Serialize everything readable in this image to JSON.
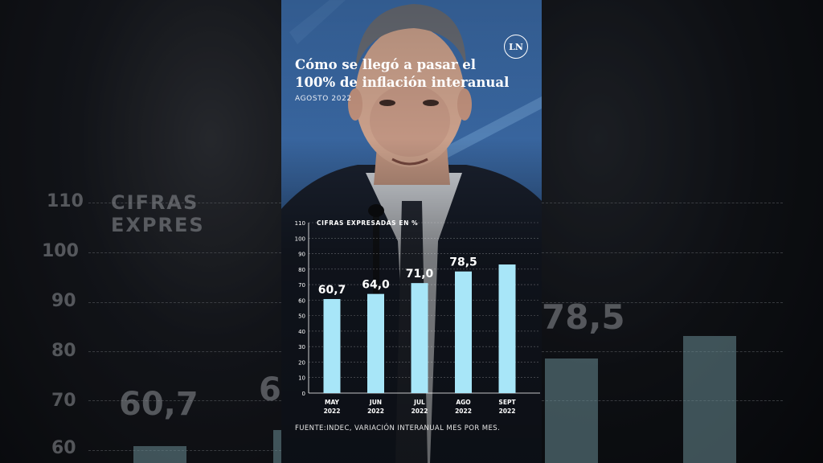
{
  "header": {
    "title_line1": "Cómo se llegó a pasar el",
    "title_line2": "100% de inflación interanual",
    "subtitle": "AGOSTO 2022",
    "logo": "LN"
  },
  "footer": {
    "source": "FUENTE:INDEC, VARIACIÓN INTERANUAL MES POR MES."
  },
  "background": {
    "ghost_heading": "CIFRAS EXPRES",
    "ghost_ticks": [
      "110",
      "100",
      "90",
      "80",
      "70",
      "60"
    ],
    "ghost_values": [
      "60,7",
      "6",
      "78,5"
    ]
  },
  "colors": {
    "bar": "#a8e6f8",
    "text": "#ffffff"
  },
  "chart_data": {
    "type": "bar",
    "title": "CIFRAS EXPRESADAS EN %",
    "categories": [
      "MAY\n2022",
      "JUN\n2022",
      "JUL\n2022",
      "AGO\n2022",
      "SEPT\n2022"
    ],
    "values": [
      60.7,
      64.0,
      71.0,
      78.5,
      83.0
    ],
    "data_labels": [
      "60,7",
      "64,0",
      "71,0",
      "78,5",
      ""
    ],
    "ylim": [
      0,
      110
    ],
    "yticks": [
      0,
      10,
      20,
      30,
      40,
      50,
      60,
      70,
      80,
      90,
      100,
      110
    ],
    "grid": true,
    "legend": "none"
  }
}
